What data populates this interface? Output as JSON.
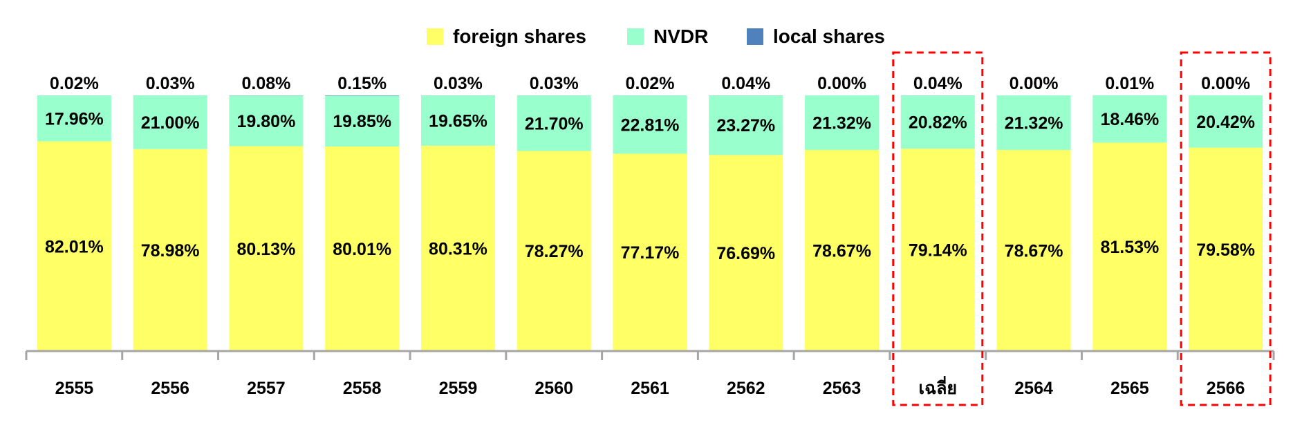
{
  "chart_data": {
    "type": "bar",
    "stacked": true,
    "categories": [
      "2555",
      "2556",
      "2557",
      "2558",
      "2559",
      "2560",
      "2561",
      "2562",
      "2563",
      "เฉลี่ย",
      "2564",
      "2565",
      "2566"
    ],
    "series": [
      {
        "name": "foreign shares",
        "color": "#FFFF66",
        "values": [
          82.01,
          78.98,
          80.13,
          80.01,
          80.31,
          78.27,
          77.17,
          76.69,
          78.67,
          79.14,
          78.67,
          81.53,
          79.58
        ],
        "labels": [
          "82.01%",
          "78.98%",
          "80.13%",
          "80.01%",
          "80.31%",
          "78.27%",
          "77.17%",
          "76.69%",
          "78.67%",
          "79.14%",
          "78.67%",
          "81.53%",
          "79.58%"
        ]
      },
      {
        "name": "NVDR",
        "color": "#99FFCC",
        "values": [
          17.96,
          21.0,
          19.8,
          19.85,
          19.65,
          21.7,
          22.81,
          23.27,
          21.32,
          20.82,
          21.32,
          18.46,
          20.42
        ],
        "labels": [
          "17.96%",
          "21.00%",
          "19.80%",
          "19.85%",
          "19.65%",
          "21.70%",
          "22.81%",
          "23.27%",
          "21.32%",
          "20.82%",
          "21.32%",
          "18.46%",
          "20.42%"
        ]
      },
      {
        "name": "local shares",
        "color": "#4F81BD",
        "values": [
          0.02,
          0.03,
          0.08,
          0.15,
          0.03,
          0.03,
          0.02,
          0.04,
          0.0,
          0.04,
          0.0,
          0.01,
          0.0
        ],
        "labels": [
          "0.02%",
          "0.03%",
          "0.08%",
          "0.15%",
          "0.03%",
          "0.03%",
          "0.02%",
          "0.04%",
          "0.00%",
          "0.04%",
          "0.00%",
          "0.01%",
          "0.00%"
        ]
      }
    ],
    "ylim": [
      0,
      100
    ],
    "grid": false,
    "legend_position": "top",
    "highlighted_categories": [
      "เฉลี่ย",
      "2566"
    ],
    "highlight_color": "#FF0000",
    "axis_color": "#A6A6A6",
    "title": "",
    "xlabel": "",
    "ylabel": ""
  }
}
